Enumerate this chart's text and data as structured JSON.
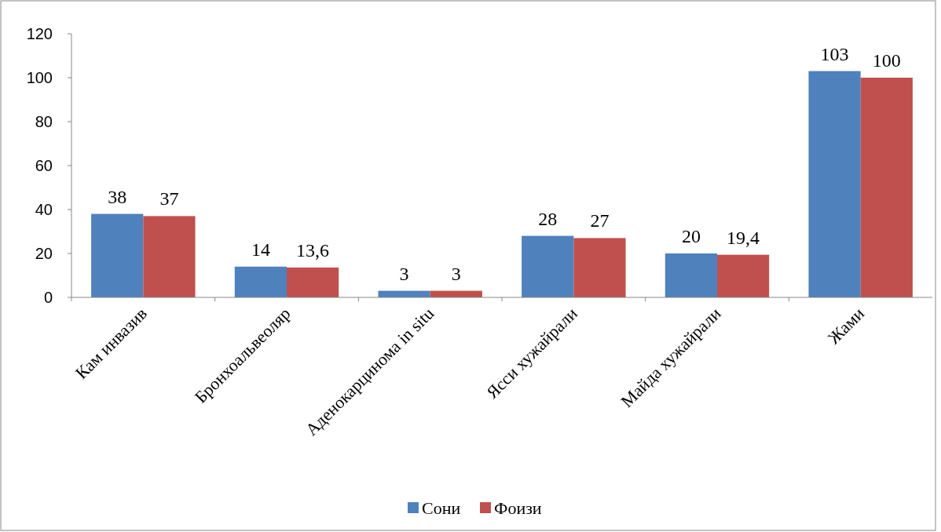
{
  "chart_data": {
    "type": "bar",
    "categories": [
      "Кам инвазив",
      "Бронхоальвеоляр",
      "Аденокарцинома in situ",
      "Ясси хужайрали",
      "Майда хужайрали",
      "Жами"
    ],
    "series": [
      {
        "name": "Сони",
        "color": "#4f81bd",
        "values": [
          38,
          14,
          3,
          28,
          20,
          103
        ],
        "value_labels": [
          "38",
          "14",
          "3",
          "28",
          "20",
          "103"
        ]
      },
      {
        "name": "Фоизи",
        "color": "#c0504d",
        "values": [
          37,
          13.6,
          3,
          27,
          19.4,
          100
        ],
        "value_labels": [
          "37",
          "13,6",
          "3",
          "27",
          "19,4",
          "100"
        ]
      }
    ],
    "ylim": [
      0,
      120
    ],
    "yticks": [
      0,
      20,
      40,
      60,
      80,
      100,
      120
    ],
    "grid": false,
    "legend": "bottom"
  }
}
